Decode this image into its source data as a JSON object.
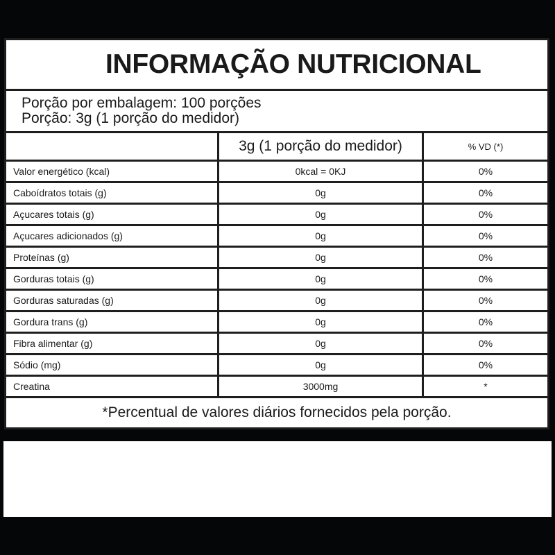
{
  "title": "INFORMAÇÃO NUTRICIONAL",
  "serving": {
    "per_package": "Porção por embalagem: 100 porções",
    "portion": "Porção: 3g (1 porção do medidor)"
  },
  "header": {
    "nutrient": "",
    "amount": "3g (1 porção do medidor)",
    "vd": "% VD (*)"
  },
  "rows": [
    {
      "name": "Valor energético (kcal)",
      "amount": "0kcal = 0KJ",
      "vd": "0%"
    },
    {
      "name": "Caboídratos totais (g)",
      "amount": "0g",
      "vd": "0%"
    },
    {
      "name": "Açucares totais (g)",
      "amount": "0g",
      "vd": "0%"
    },
    {
      "name": "Açucares adicionados (g)",
      "amount": "0g",
      "vd": "0%"
    },
    {
      "name": "Proteínas (g)",
      "amount": "0g",
      "vd": "0%"
    },
    {
      "name": "Gorduras totais (g)",
      "amount": "0g",
      "vd": "0%"
    },
    {
      "name": "Gorduras saturadas (g)",
      "amount": "0g",
      "vd": "0%"
    },
    {
      "name": "Gordura trans (g)",
      "amount": "0g",
      "vd": "0%"
    },
    {
      "name": "Fibra alimentar (g)",
      "amount": "0g",
      "vd": "0%"
    },
    {
      "name": "Sódio (mg)",
      "amount": "0g",
      "vd": "0%"
    },
    {
      "name": "Creatina",
      "amount": "3000mg",
      "vd": "*"
    }
  ],
  "footnote": "*Percentual de valores diários fornecidos pela porção."
}
